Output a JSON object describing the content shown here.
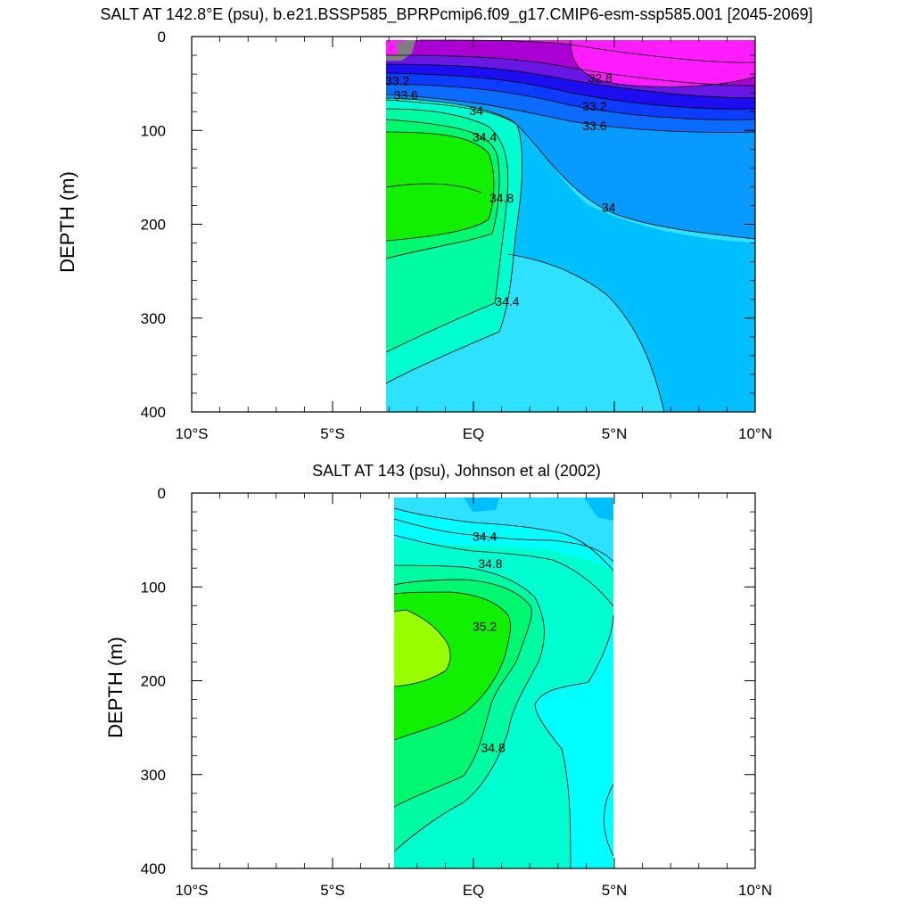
{
  "chart_data": [
    {
      "type": "contour",
      "title": "SALT AT 142.8°E (psu), b.e21.BSSP585_BPRPcmip6.f09_g17.CMIP6-esm-ssp585.001 [2045-2069]",
      "ylabel": "DEPTH (m)",
      "xlabel": "",
      "x_tick_labels": [
        "10°S",
        "5°S",
        "EQ",
        "5°N",
        "10°N"
      ],
      "x_ticks": [
        -10,
        -5,
        0,
        5,
        10
      ],
      "y_tick_labels": [
        "0",
        "100",
        "200",
        "300",
        "400"
      ],
      "y_ticks": [
        0,
        100,
        200,
        300,
        400
      ],
      "xlim": [
        -10,
        10
      ],
      "ylim": [
        400,
        0
      ],
      "data_xlim": [
        -3,
        10
      ],
      "contour_labels": [
        {
          "text": "32.8",
          "x": 4.5,
          "depth": 45
        },
        {
          "text": "33.2",
          "x": -2.7,
          "depth": 48
        },
        {
          "text": "33.6",
          "x": -2.4,
          "depth": 63
        },
        {
          "text": "33.2",
          "x": 4.3,
          "depth": 75
        },
        {
          "text": "33.6",
          "x": 4.3,
          "depth": 96
        },
        {
          "text": "34",
          "x": 0.1,
          "depth": 80
        },
        {
          "text": "34.4",
          "x": 0.4,
          "depth": 108
        },
        {
          "text": "34",
          "x": 4.8,
          "depth": 183
        },
        {
          "text": "34.8",
          "x": 1.0,
          "depth": 173
        },
        {
          "text": "34.4",
          "x": 1.2,
          "depth": 283
        }
      ]
    },
    {
      "type": "contour",
      "title": "SALT AT 143 (psu), Johnson et al (2002)",
      "ylabel": "DEPTH (m)",
      "xlabel": "",
      "x_tick_labels": [
        "10°S",
        "5°S",
        "EQ",
        "5°N",
        "10°N"
      ],
      "x_ticks": [
        -10,
        -5,
        0,
        5,
        10
      ],
      "y_tick_labels": [
        "0",
        "100",
        "200",
        "300",
        "400"
      ],
      "y_ticks": [
        0,
        100,
        200,
        300,
        400
      ],
      "xlim": [
        -10,
        10
      ],
      "ylim": [
        400,
        0
      ],
      "data_xlim": [
        -2.8,
        5
      ],
      "contour_labels": [
        {
          "text": "34.4",
          "x": 0.4,
          "depth": 47
        },
        {
          "text": "34.8",
          "x": 0.6,
          "depth": 76
        },
        {
          "text": "35.2",
          "x": 0.4,
          "depth": 143
        },
        {
          "text": "34.8",
          "x": 0.7,
          "depth": 272
        }
      ]
    }
  ],
  "colors": {
    "c_gray": "#7f7f7f",
    "c_pink": "#ff1cff",
    "c_magenta": "#e01fe0",
    "c_purple": "#aa00d4",
    "c_violet": "#6a17e6",
    "c_blue_dark": "#1c0ef0",
    "c_blue": "#0b3cff",
    "c_blue_mid": "#0b6bff",
    "c_blue_light": "#079aff",
    "c_sky": "#00bfff",
    "c_cyan_light": "#2ee2ff",
    "c_cyan": "#00ffff",
    "c_aqua": "#00ffd0",
    "c_seagreen": "#00fca2",
    "c_green_light": "#00f870",
    "c_green": "#10f000",
    "c_lime": "#99ff00"
  }
}
